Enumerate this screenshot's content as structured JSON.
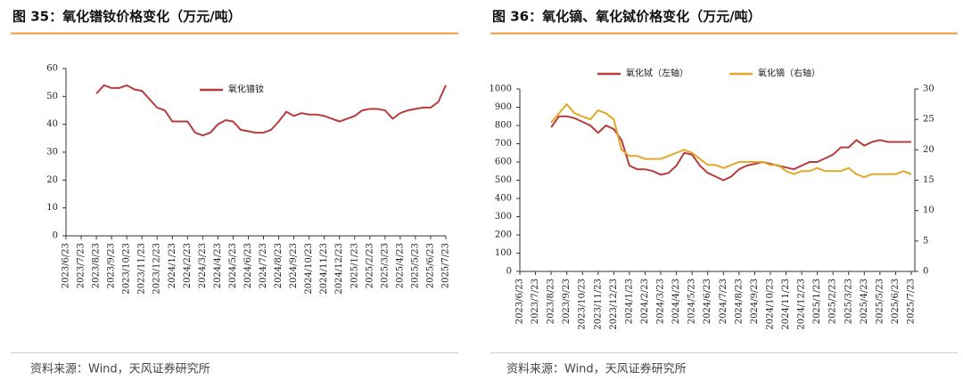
{
  "chart_data": [
    {
      "type": "line",
      "title": "图 35：氧化镨钕价格变化（万元/吨）",
      "source": "资料来源：Wind，天风证券研究所",
      "categories": [
        "2023/6/23",
        null,
        "2023/7/23",
        null,
        "2023/8/23",
        null,
        "2023/9/23",
        null,
        "2023/10/23",
        null,
        "2023/11/23",
        null,
        "2023/12/23",
        null,
        "2024/1/23",
        null,
        "2024/2/23",
        null,
        "2024/3/23",
        null,
        "2024/4/23",
        null,
        "2024/5/23",
        null,
        "2024/6/23",
        null,
        "2024/7/23",
        null,
        "2024/8/23",
        null,
        "2024/9/23",
        null,
        "2024/10/23",
        null,
        "2024/11/23",
        null,
        "2024/12/23",
        null,
        "2025/1/23",
        null,
        "2025/2/23",
        null,
        "2025/3/23",
        null,
        "2025/4/23",
        null,
        "2025/5/23",
        null,
        "2025/6/23",
        null,
        "2025/7/23"
      ],
      "series": [
        {
          "name": "氧化镨钕",
          "color": "#b83b3c",
          "values": [
            null,
            null,
            null,
            null,
            51,
            54,
            53,
            53,
            54,
            52.5,
            52,
            49,
            46,
            45,
            41,
            41,
            41,
            37,
            36,
            37,
            40,
            41.5,
            41,
            38,
            37.5,
            37,
            37,
            38,
            41,
            44.5,
            43,
            44,
            43.5,
            43.5,
            43,
            42,
            41,
            42,
            43,
            45,
            45.5,
            45.5,
            45,
            42,
            44,
            45,
            45.5,
            46,
            46,
            48,
            54
          ]
        }
      ],
      "ylim": [
        0,
        60
      ],
      "yticks": [
        0,
        10,
        20,
        30,
        40,
        50,
        60
      ]
    },
    {
      "type": "line",
      "title": "图 36：氧化镝、氧化铽价格变化（万元/吨）",
      "source": "资料来源：Wind，天风证券研究所",
      "categories": [
        "2023/6/23",
        null,
        "2023/7/23",
        null,
        "2023/8/23",
        null,
        "2023/9/23",
        null,
        "2023/10/23",
        null,
        "2023/11/23",
        null,
        "2023/12/23",
        null,
        "2024/1/23",
        null,
        "2024/2/23",
        null,
        "2024/3/23",
        null,
        "2024/4/23",
        null,
        "2024/5/23",
        null,
        "2024/6/23",
        null,
        "2024/7/23",
        null,
        "2024/8/23",
        null,
        "2024/9/23",
        null,
        "2024/10/23",
        null,
        "2024/11/23",
        null,
        "2024/12/23",
        null,
        "2025/1/23",
        null,
        "2025/2/23",
        null,
        "2025/3/23",
        null,
        "2025/4/23",
        null,
        "2025/5/23",
        null,
        "2025/6/23",
        null,
        "2025/7/23"
      ],
      "series": [
        {
          "name": "氧化铽（左轴）",
          "color": "#b83b3c",
          "values": [
            null,
            null,
            null,
            null,
            790,
            850,
            850,
            840,
            820,
            800,
            760,
            800,
            780,
            720,
            580,
            560,
            560,
            550,
            530,
            540,
            580,
            650,
            640,
            580,
            540,
            520,
            500,
            520,
            560,
            580,
            590,
            600,
            590,
            580,
            570,
            560,
            580,
            600,
            600,
            620,
            640,
            680,
            680,
            720,
            690,
            710,
            720,
            710,
            710,
            710,
            710
          ]
        },
        {
          "name": "氧化镝（右轴）",
          "color": "#e2a82a",
          "axis": "y2",
          "values": [
            null,
            null,
            null,
            null,
            24.5,
            26,
            27.5,
            26,
            25.5,
            25,
            26.5,
            26,
            25,
            20,
            19,
            19,
            18.5,
            18.5,
            18.5,
            19,
            19.5,
            20,
            19.5,
            18.5,
            17.5,
            17.5,
            17,
            17.5,
            18,
            18,
            18,
            18,
            17.5,
            17.5,
            16.5,
            16,
            16.5,
            16.5,
            17,
            16.5,
            16.5,
            16.5,
            17,
            16,
            15.5,
            16,
            16,
            16,
            16,
            16.5,
            16
          ]
        }
      ],
      "ylim": [
        0,
        1000
      ],
      "yticks": [
        0,
        100,
        200,
        300,
        400,
        500,
        600,
        700,
        800,
        900,
        1000
      ],
      "y2lim": [
        0,
        30
      ],
      "y2ticks": [
        0,
        5,
        10,
        15,
        20,
        25,
        30
      ]
    }
  ]
}
